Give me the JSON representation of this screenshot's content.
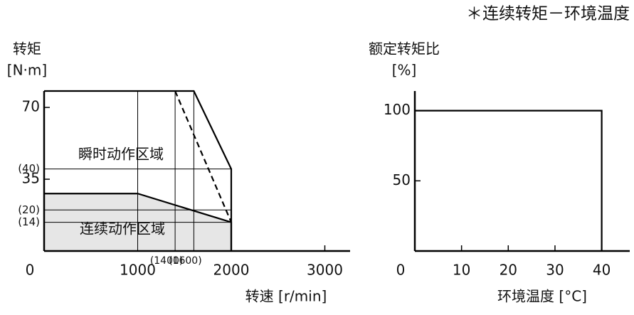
{
  "note": "＊连续转矩－环境温度",
  "chart_data": [
    {
      "type": "line",
      "ylabel": [
        "转矩",
        "[N·m]"
      ],
      "xlabel": "转速 [r/min]",
      "xlim": [
        0,
        3270
      ],
      "ylim": [
        0,
        78
      ],
      "xticks": [
        0,
        1000,
        {
          "value": 1400,
          "label": "(1400)"
        },
        {
          "value": 1600,
          "label": "(1600)"
        },
        2000,
        3000
      ],
      "yticks": [
        {
          "value": 14,
          "label": "(14)"
        },
        {
          "value": 20,
          "label": "(20)"
        },
        35,
        {
          "value": 40,
          "label": "(40)"
        },
        70
      ],
      "series": [
        {
          "name": "瞬时动作区域",
          "color": "#000000",
          "x": [
            0,
            1600,
            2000,
            2000
          ],
          "values": [
            78,
            78,
            40,
            0
          ]
        },
        {
          "color": "#000000",
          "style": "dashed",
          "x": [
            1400,
            2000
          ],
          "values": [
            78,
            14
          ]
        },
        {
          "name": "连续动作区域",
          "color": "#000000",
          "fill": "#e6e6e6",
          "x": [
            0,
            1000,
            2000,
            2000
          ],
          "values": [
            28,
            28,
            14,
            0
          ]
        }
      ]
    },
    {
      "type": "line",
      "ylabel": [
        "额定转矩比",
        "[%]"
      ],
      "xlabel": "环境温度 [°C]",
      "xlim": [
        0,
        46
      ],
      "ylim": [
        0,
        114
      ],
      "xticks": [
        0,
        10,
        20,
        30,
        40
      ],
      "yticks": [
        50,
        100
      ],
      "series": [
        {
          "color": "#000000",
          "x": [
            0,
            40,
            40
          ],
          "values": [
            100,
            100,
            0
          ]
        }
      ]
    }
  ]
}
